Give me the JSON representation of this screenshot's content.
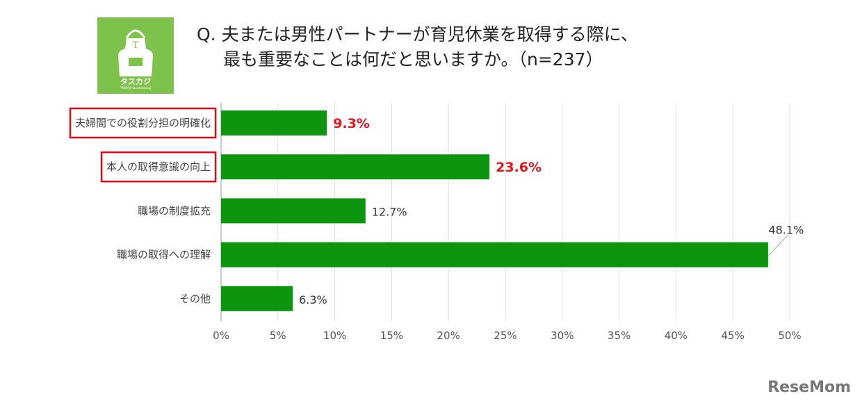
{
  "logo": {
    "letter": "T",
    "name": "タスカジ",
    "sub": "TASKAJI housekeeping"
  },
  "title": {
    "line1": "Q. 夫または男性パートナーが育児休業を取得する際に、",
    "line2": "最も重要なことは何だと思いますか。（n=237）"
  },
  "watermark": "ReseMom",
  "chart_data": {
    "type": "bar",
    "orientation": "horizontal",
    "categories": [
      "夫婦間での役割分担の明確化",
      "本人の取得意識の向上",
      "職場の制度拡充",
      "職場の取得への理解",
      "その他"
    ],
    "values": [
      9.3,
      23.6,
      12.7,
      48.1,
      6.3
    ],
    "value_labels": [
      "9.3%",
      "23.6%",
      "12.7%",
      "48.1%",
      "6.3%"
    ],
    "highlighted": [
      true,
      true,
      false,
      false,
      false
    ],
    "xlim": [
      0,
      50
    ],
    "ticks": [
      "0%",
      "5%",
      "10%",
      "15%",
      "20%",
      "25%",
      "30%",
      "35%",
      "40%",
      "45%",
      "50%"
    ],
    "grid": true,
    "colors": {
      "bar": "#0d9510",
      "highlight_text": "#e8141c",
      "highlight_box": "#e00b16"
    }
  }
}
